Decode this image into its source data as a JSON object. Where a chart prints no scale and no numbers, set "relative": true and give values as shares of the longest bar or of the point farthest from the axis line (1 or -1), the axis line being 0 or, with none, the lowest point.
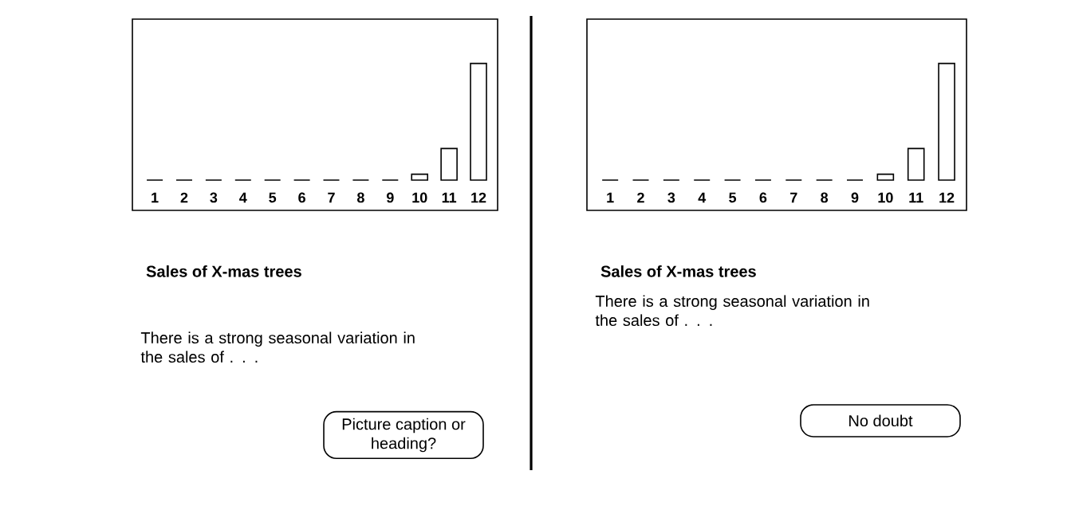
{
  "chart_data": [
    {
      "type": "bar",
      "relative": true,
      "title": "Sales of X-mas trees",
      "categories": [
        "1",
        "2",
        "3",
        "4",
        "5",
        "6",
        "7",
        "8",
        "9",
        "10",
        "11",
        "12"
      ],
      "values": [
        0,
        0,
        0,
        0,
        0,
        0,
        0,
        0,
        0,
        0.05,
        0.27,
        1
      ],
      "color": "#000000",
      "annotations": [
        "There is a strong seasonal variation in the sales of . . .",
        "Picture caption or heading?"
      ]
    },
    {
      "type": "bar",
      "relative": true,
      "title": "Sales of X-mas trees",
      "categories": [
        "1",
        "2",
        "3",
        "4",
        "5",
        "6",
        "7",
        "8",
        "9",
        "10",
        "11",
        "12"
      ],
      "values": [
        0,
        0,
        0,
        0,
        0,
        0,
        0,
        0,
        0,
        0.05,
        0.27,
        1
      ],
      "color": "#000000",
      "annotations": [
        "There is a strong seasonal variation in the sales of . . .",
        "No doubt"
      ]
    }
  ]
}
